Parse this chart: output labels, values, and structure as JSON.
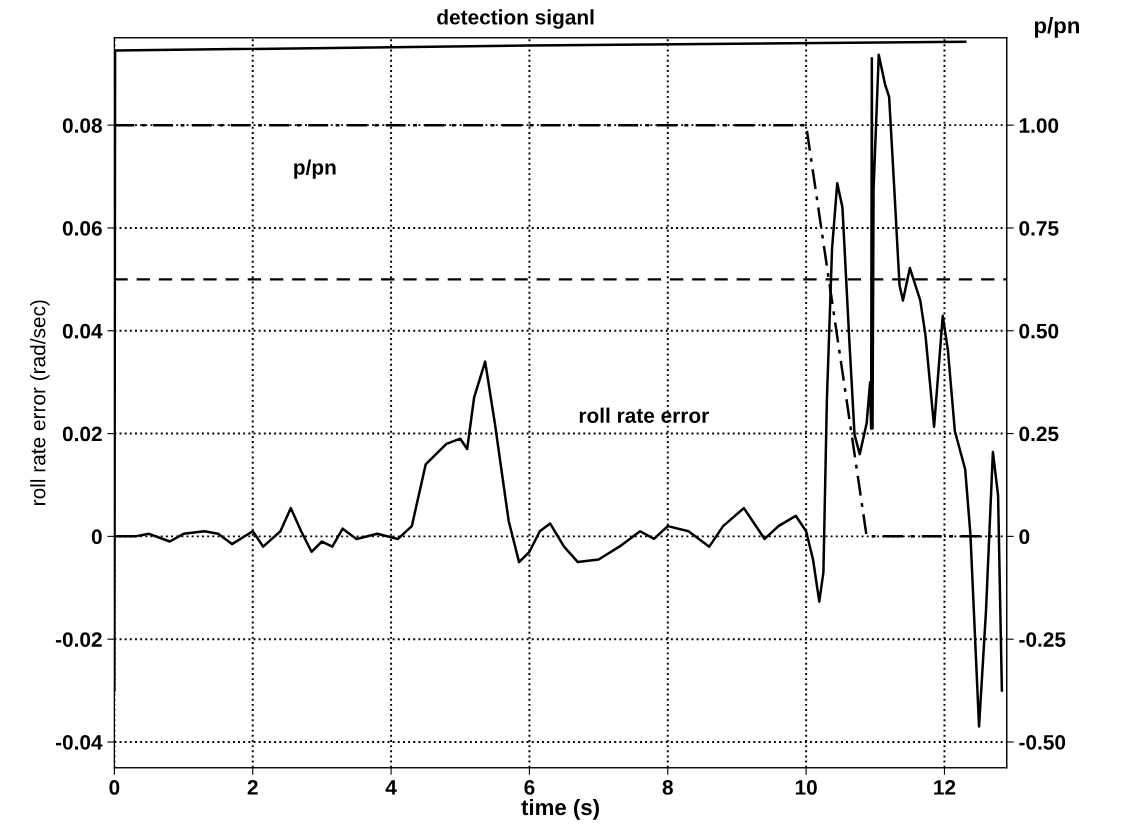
{
  "chart_data": {
    "type": "line",
    "xlabel": "time (s)",
    "ylabel": "roll rate error (rad/sec)",
    "y2label": "p/pn",
    "xlim": [
      0,
      12.9
    ],
    "xticks": [
      0,
      2,
      4,
      6,
      8,
      10,
      12
    ],
    "ylim": [
      -0.045,
      0.097
    ],
    "yticks": [
      {
        "value": 0.08,
        "label": "0.08"
      },
      {
        "value": 0.06,
        "label": "0.06"
      },
      {
        "value": 0.04,
        "label": "0.04"
      },
      {
        "value": 0.02,
        "label": "0.02"
      },
      0,
      {
        "value": -0.02,
        "label": "-0.02"
      },
      {
        "value": -0.04,
        "label": "-0.04"
      }
    ],
    "y2lim": [
      -0.5625,
      1.2125
    ],
    "y2ticks": [
      {
        "value": 1.0,
        "label": "1.00"
      },
      {
        "value": 0.75,
        "label": "0.75"
      },
      {
        "value": 0.5,
        "label": "0.50"
      },
      {
        "value": 0.25,
        "label": "0.25"
      },
      0,
      {
        "value": -0.25,
        "label": "-0.25"
      },
      {
        "value": -0.5,
        "label": "-0.50"
      }
    ],
    "grid": true,
    "legend": false,
    "series": [
      {
        "color": "#000000",
        "line_style": "solid",
        "x": [
          0,
          0.3,
          0.5,
          0.8,
          1.0,
          1.3,
          1.5,
          1.7,
          2.0,
          2.15,
          2.4,
          2.55,
          2.7,
          2.85,
          3.0,
          3.15,
          3.3,
          3.5,
          3.8,
          4.1,
          4.3,
          4.5,
          4.8,
          5.0,
          5.1,
          5.2,
          5.36,
          5.5,
          5.7,
          5.85,
          6.0,
          6.15,
          6.3,
          6.5,
          6.7,
          7.0,
          7.3,
          7.6,
          7.8,
          8.0,
          8.3,
          8.6,
          8.8,
          9.1,
          9.4,
          9.6,
          9.85,
          10.0,
          10.1,
          10.19,
          10.25,
          10.3,
          10.375,
          10.45,
          10.525,
          10.625,
          10.7,
          10.775,
          10.875,
          10.925,
          10.94,
          10.95,
          10.96,
          10.975,
          11.05,
          11.14,
          11.2,
          11.275,
          11.35,
          11.4,
          11.5,
          11.65,
          11.725,
          11.85,
          11.975,
          12.05,
          12.15,
          12.3,
          12.375,
          12.5,
          12.6,
          12.7,
          12.775,
          12.83
        ],
        "values": [
          0,
          0,
          0.0005,
          -0.001,
          0.0005,
          0.001,
          0.0005,
          -0.0015,
          0.001,
          -0.002,
          0.001,
          0.0055,
          0.001,
          -0.003,
          -0.001,
          -0.002,
          0.0015,
          -0.0005,
          0.0005,
          -0.0005,
          0.002,
          0.014,
          0.018,
          0.019,
          0.017,
          0.027,
          0.034,
          0.022,
          0.003,
          -0.005,
          -0.003,
          0.001,
          0.0025,
          -0.002,
          -0.005,
          -0.0045,
          -0.002,
          0.001,
          -0.0005,
          0.002,
          0.001,
          -0.002,
          0.002,
          0.0055,
          -0.0005,
          0.002,
          0.004,
          0.001,
          -0.0045,
          -0.0127,
          -0.007,
          0.0265,
          0.056,
          0.0687,
          0.064,
          0.038,
          0.0198,
          0.016,
          0.022,
          0.03,
          0.021,
          0.093,
          0.021,
          0.0675,
          0.0937,
          0.088,
          0.0855,
          0.0675,
          0.0489,
          0.0459,
          0.0522,
          0.0459,
          0.0392,
          0.0213,
          0.0429,
          0.0362,
          0.0205,
          0.013,
          0.0004,
          -0.037,
          -0.0146,
          0.0164,
          0.008,
          -0.03
        ]
      },
      {
        "color": "#000000",
        "line_style": "dashdot",
        "axis": "y2",
        "x": [
          0,
          10.0,
          10.875,
          12.72
        ],
        "values": [
          1.0,
          1.0,
          0,
          0
        ]
      },
      {
        "color": "#000000",
        "line_style": "solid",
        "x": [
          0,
          0.01,
          6.0,
          12.3
        ],
        "values": [
          -0.03,
          0.0945,
          0.0955,
          0.0962
        ]
      }
    ],
    "ref_lines": [
      {
        "axis": "y",
        "value": 0.05,
        "color": "#000000",
        "line_style": "dashed"
      }
    ],
    "annotations": [
      {
        "text": "detection siganl",
        "x": 5.8,
        "y": 0.0955
      },
      "p/pn",
      "roll rate error"
    ]
  }
}
